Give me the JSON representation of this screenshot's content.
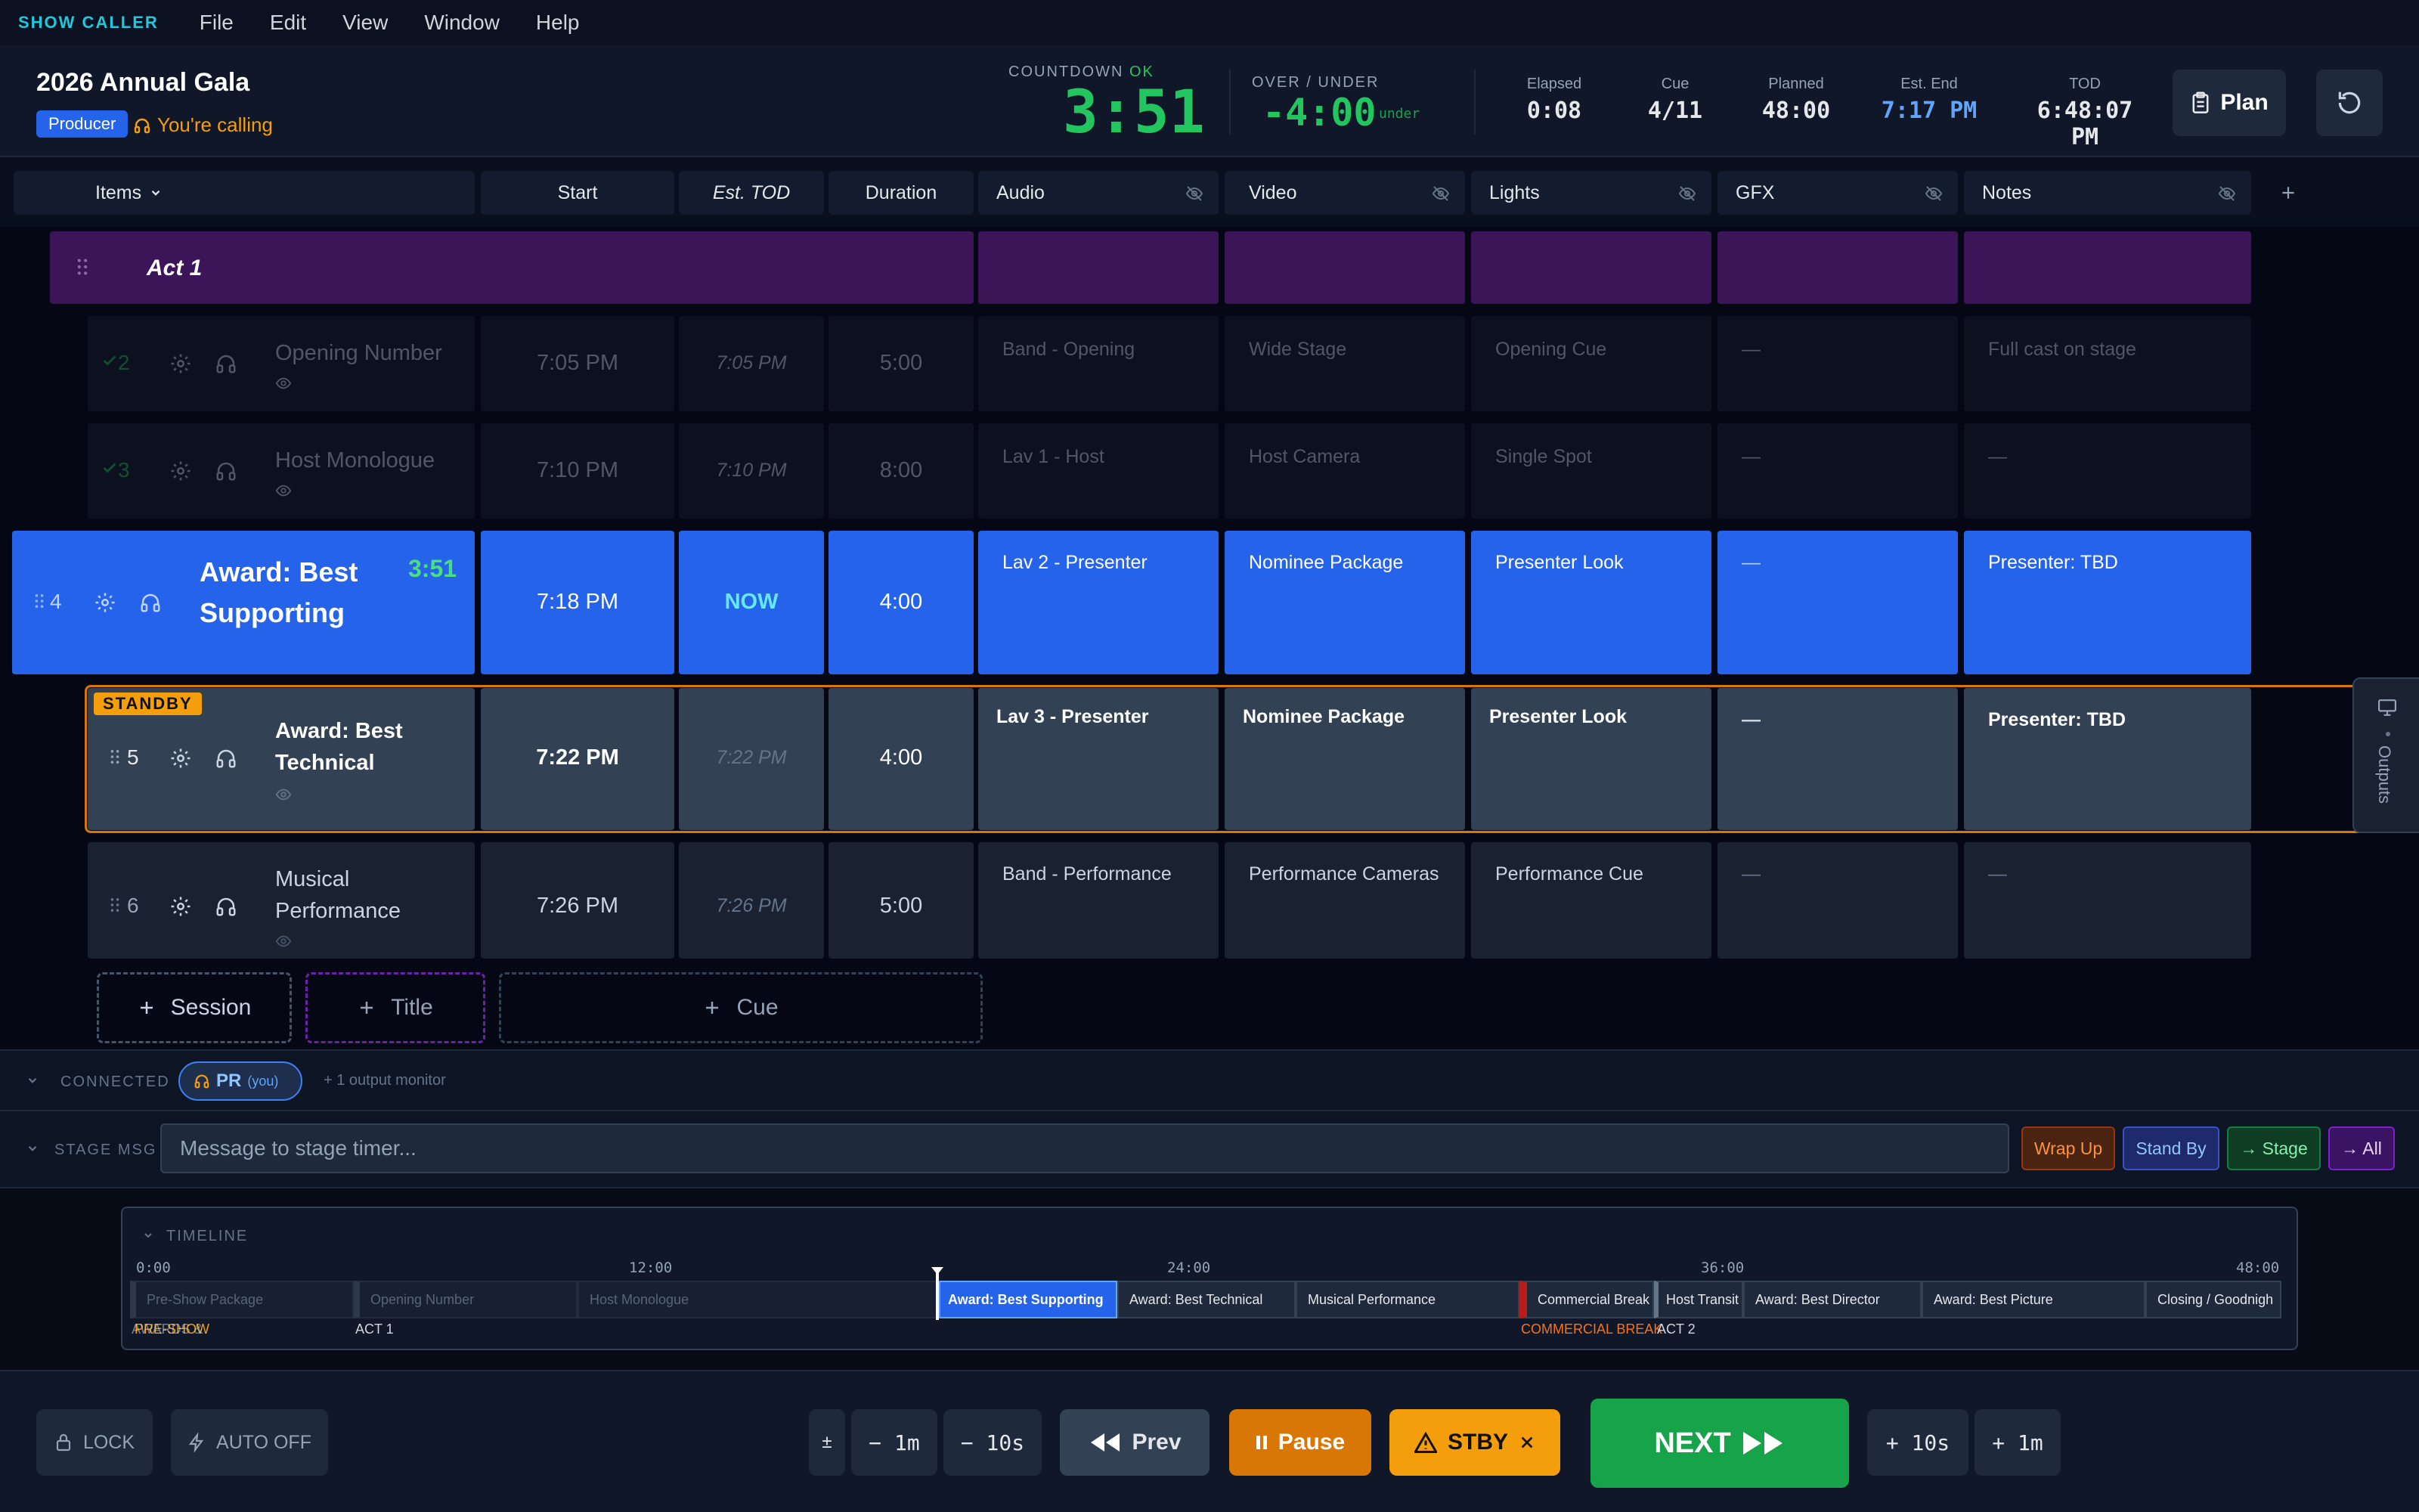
{
  "app": {
    "brand": "SHOW CALLER"
  },
  "menu": [
    "File",
    "Edit",
    "View",
    "Window",
    "Help"
  ],
  "show": {
    "title": "2026 Annual Gala",
    "role": "Producer",
    "calling": "You're calling"
  },
  "countdown": {
    "label": "COUNTDOWN",
    "status": "OK",
    "value": "3:51",
    "status_color": "#22c55e"
  },
  "over_under": {
    "label": "OVER / UNDER",
    "value": "-4:00",
    "suffix": "under"
  },
  "stats": {
    "elapsed": {
      "label": "Elapsed",
      "value": "0:08"
    },
    "cue": {
      "label": "Cue",
      "value": "4/11"
    },
    "planned": {
      "label": "Planned",
      "value": "48:00"
    },
    "est_end": {
      "label": "Est. End",
      "value": "7:17 PM"
    },
    "tod": {
      "label": "TOD",
      "value": "6:48:07 PM"
    }
  },
  "plan_label": "Plan",
  "columns": {
    "items": "Items",
    "start": "Start",
    "est_tod": "Est. TOD",
    "duration": "Duration",
    "audio": "Audio",
    "video": "Video",
    "lights": "Lights",
    "gfx": "GFX",
    "notes": "Notes"
  },
  "act": {
    "label": "Act 1",
    "color": "#3b1558"
  },
  "rows": [
    {
      "num": "2",
      "title": "Opening Number",
      "start": "7:05 PM",
      "est": "7:05 PM",
      "duration": "5:00",
      "audio": "Band - Opening",
      "video": "Wide Stage",
      "lights": "Opening Cue",
      "gfx": "—",
      "notes": "Full cast on stage",
      "state": "done"
    },
    {
      "num": "3",
      "title": "Host Monologue",
      "start": "7:10 PM",
      "est": "7:10 PM",
      "duration": "8:00",
      "audio": "Lav 1 - Host",
      "video": "Host Camera",
      "lights": "Single Spot",
      "gfx": "—",
      "notes": "—",
      "state": "done"
    },
    {
      "num": "4",
      "title": "Award: Best Supporting",
      "remaining": "3:51",
      "start": "7:18 PM",
      "est": "NOW",
      "duration": "4:00",
      "audio": "Lav 2 - Presenter",
      "video": "Nominee Package",
      "lights": "Presenter Look",
      "gfx": "—",
      "notes": "Presenter: TBD",
      "state": "live"
    },
    {
      "num": "5",
      "title": "Award: Best Technical",
      "start": "7:22 PM",
      "est": "7:22 PM",
      "duration": "4:00",
      "audio": "Lav 3 - Presenter",
      "video": "Nominee Package",
      "lights": "Presenter Look",
      "gfx": "—",
      "notes": "Presenter: TBD",
      "state": "standby",
      "badge": "STANDBY"
    },
    {
      "num": "6",
      "title": "Musical Performance",
      "start": "7:26 PM",
      "est": "7:26 PM",
      "duration": "5:00",
      "audio": "Band - Performance",
      "video": "Performance Cameras",
      "lights": "Performance Cue",
      "gfx": "—",
      "notes": "—",
      "state": "upcoming"
    }
  ],
  "add_buttons": {
    "session": "Session",
    "title": "Title",
    "cue": "Cue"
  },
  "outputs_label": "Outputs",
  "connected": {
    "label": "CONNECTED",
    "user": "PR",
    "you": "(you)",
    "extra": "+ 1 output monitor"
  },
  "stage_msg": {
    "label": "STAGE MSG",
    "placeholder": "Message to stage timer...",
    "buttons": [
      "Wrap Up",
      "Stand By",
      "→ Stage",
      "→ All"
    ]
  },
  "timeline": {
    "label": "TIMELINE",
    "ticks": [
      "0:00",
      "12:00",
      "24:00",
      "36:00",
      "48:00"
    ],
    "segments": [
      "Pre-Show Package",
      "Opening Number",
      "Host Monologue",
      "Award: Best Supporting",
      "Award: Best Technical",
      "Musical Performance",
      "Commercial Break",
      "Host Transit",
      "Award: Best Director",
      "Award: Best Picture",
      "Closing / Goodnigh"
    ],
    "sections": [
      "PRE-SHOW",
      "ACT 1",
      "COMMERCIAL BREAK",
      "ACT 2"
    ],
    "section_overlay": "AWARDS &"
  },
  "footer": {
    "lock": "LOCK",
    "auto": "AUTO OFF",
    "plusminus": "±",
    "minus1m": "− 1m",
    "minus10s": "− 10s",
    "prev": "Prev",
    "pause": "Pause",
    "stby": "STBY",
    "next": "NEXT",
    "plus10s": "+ 10s",
    "plus1m": "+ 1m"
  }
}
